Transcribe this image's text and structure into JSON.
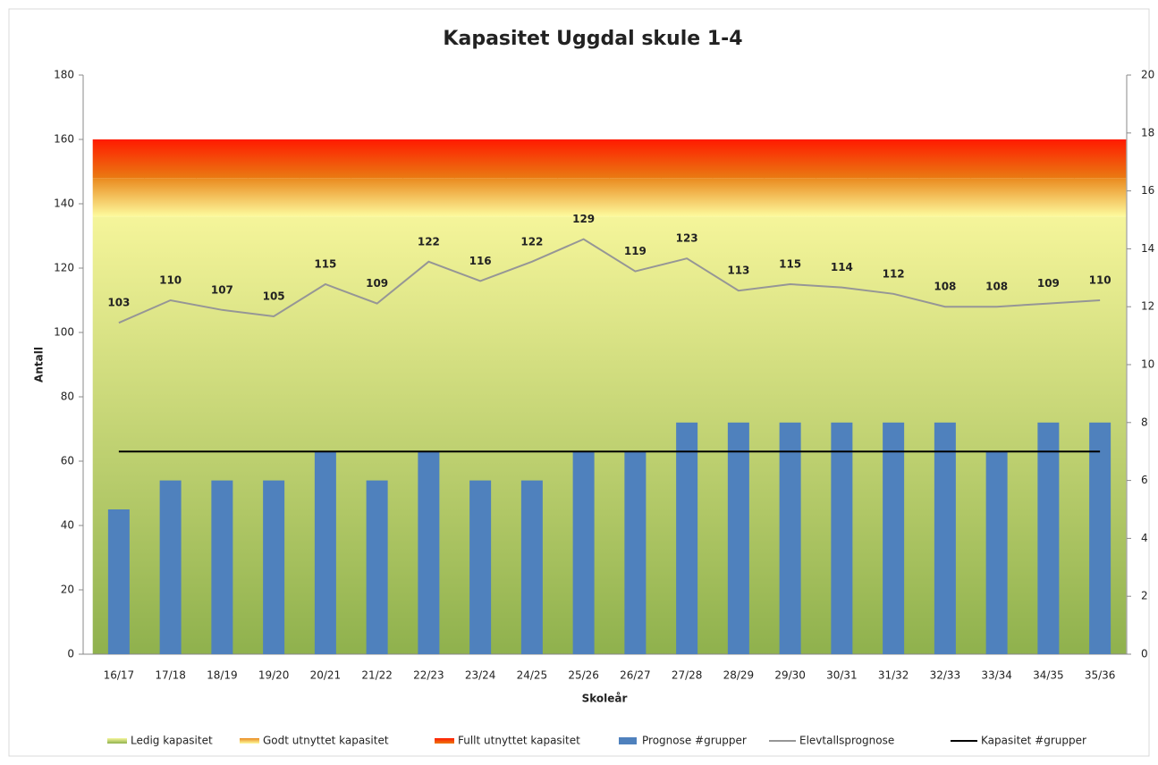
{
  "chart_data": {
    "type": "combo",
    "title": "Kapasitet Uggdal skule 1-4",
    "x_label": "Skoleår",
    "y_label": "Antall",
    "categories": [
      "16/17",
      "17/18",
      "18/19",
      "19/20",
      "20/21",
      "21/22",
      "22/23",
      "23/24",
      "24/25",
      "25/26",
      "26/27",
      "27/28",
      "28/29",
      "29/30",
      "30/31",
      "31/32",
      "32/33",
      "33/34",
      "34/35",
      "35/36"
    ],
    "ylim": [
      0,
      180
    ],
    "yticks": [
      0,
      20,
      40,
      60,
      80,
      100,
      120,
      140,
      160,
      180
    ],
    "y2lim": [
      0,
      20
    ],
    "y2ticks": [
      0,
      2,
      4,
      6,
      8,
      10,
      12,
      14,
      16,
      18,
      20
    ],
    "legend": "bottom",
    "series": [
      {
        "name": "Ledig kapasitet",
        "type": "stacked-area",
        "color": "#f5f59a",
        "color2": "#8fb14d",
        "values": [
          136,
          136,
          136,
          136,
          136,
          136,
          136,
          136,
          136,
          136,
          136,
          136,
          136,
          136,
          136,
          136,
          136,
          136,
          136,
          136
        ]
      },
      {
        "name": "Godt utnyttet kapasitet",
        "type": "stacked-area",
        "color": "#ea8a1e",
        "color2": "#fdfb9e",
        "values": [
          12,
          12,
          12,
          12,
          12,
          12,
          12,
          12,
          12,
          12,
          12,
          12,
          12,
          12,
          12,
          12,
          12,
          12,
          12,
          12
        ]
      },
      {
        "name": "Fullt utnyttet kapasitet",
        "type": "stacked-area",
        "color": "#ff1a00",
        "color2": "#ea7a12",
        "values": [
          12,
          12,
          12,
          12,
          12,
          12,
          12,
          12,
          12,
          12,
          12,
          12,
          12,
          12,
          12,
          12,
          12,
          12,
          12,
          12
        ]
      },
      {
        "name": "Prognose #grupper",
        "type": "bar",
        "axis": "y2",
        "color": "#4f81bd",
        "values": [
          5,
          6,
          6,
          6,
          7,
          6,
          7,
          6,
          6,
          7,
          7,
          8,
          8,
          8,
          8,
          8,
          8,
          7,
          8,
          8
        ]
      },
      {
        "name": "Elevtallsprognose",
        "type": "line",
        "color": "#969696",
        "data_labels": true,
        "values": [
          103,
          110,
          107,
          105,
          115,
          109,
          122,
          116,
          122,
          129,
          119,
          123,
          113,
          115,
          114,
          112,
          108,
          108,
          109,
          110
        ]
      },
      {
        "name": "Kapasitet #grupper",
        "type": "line",
        "axis": "y2",
        "color": "#000000",
        "values": [
          7,
          7,
          7,
          7,
          7,
          7,
          7,
          7,
          7,
          7,
          7,
          7,
          7,
          7,
          7,
          7,
          7,
          7,
          7,
          7
        ]
      }
    ]
  }
}
